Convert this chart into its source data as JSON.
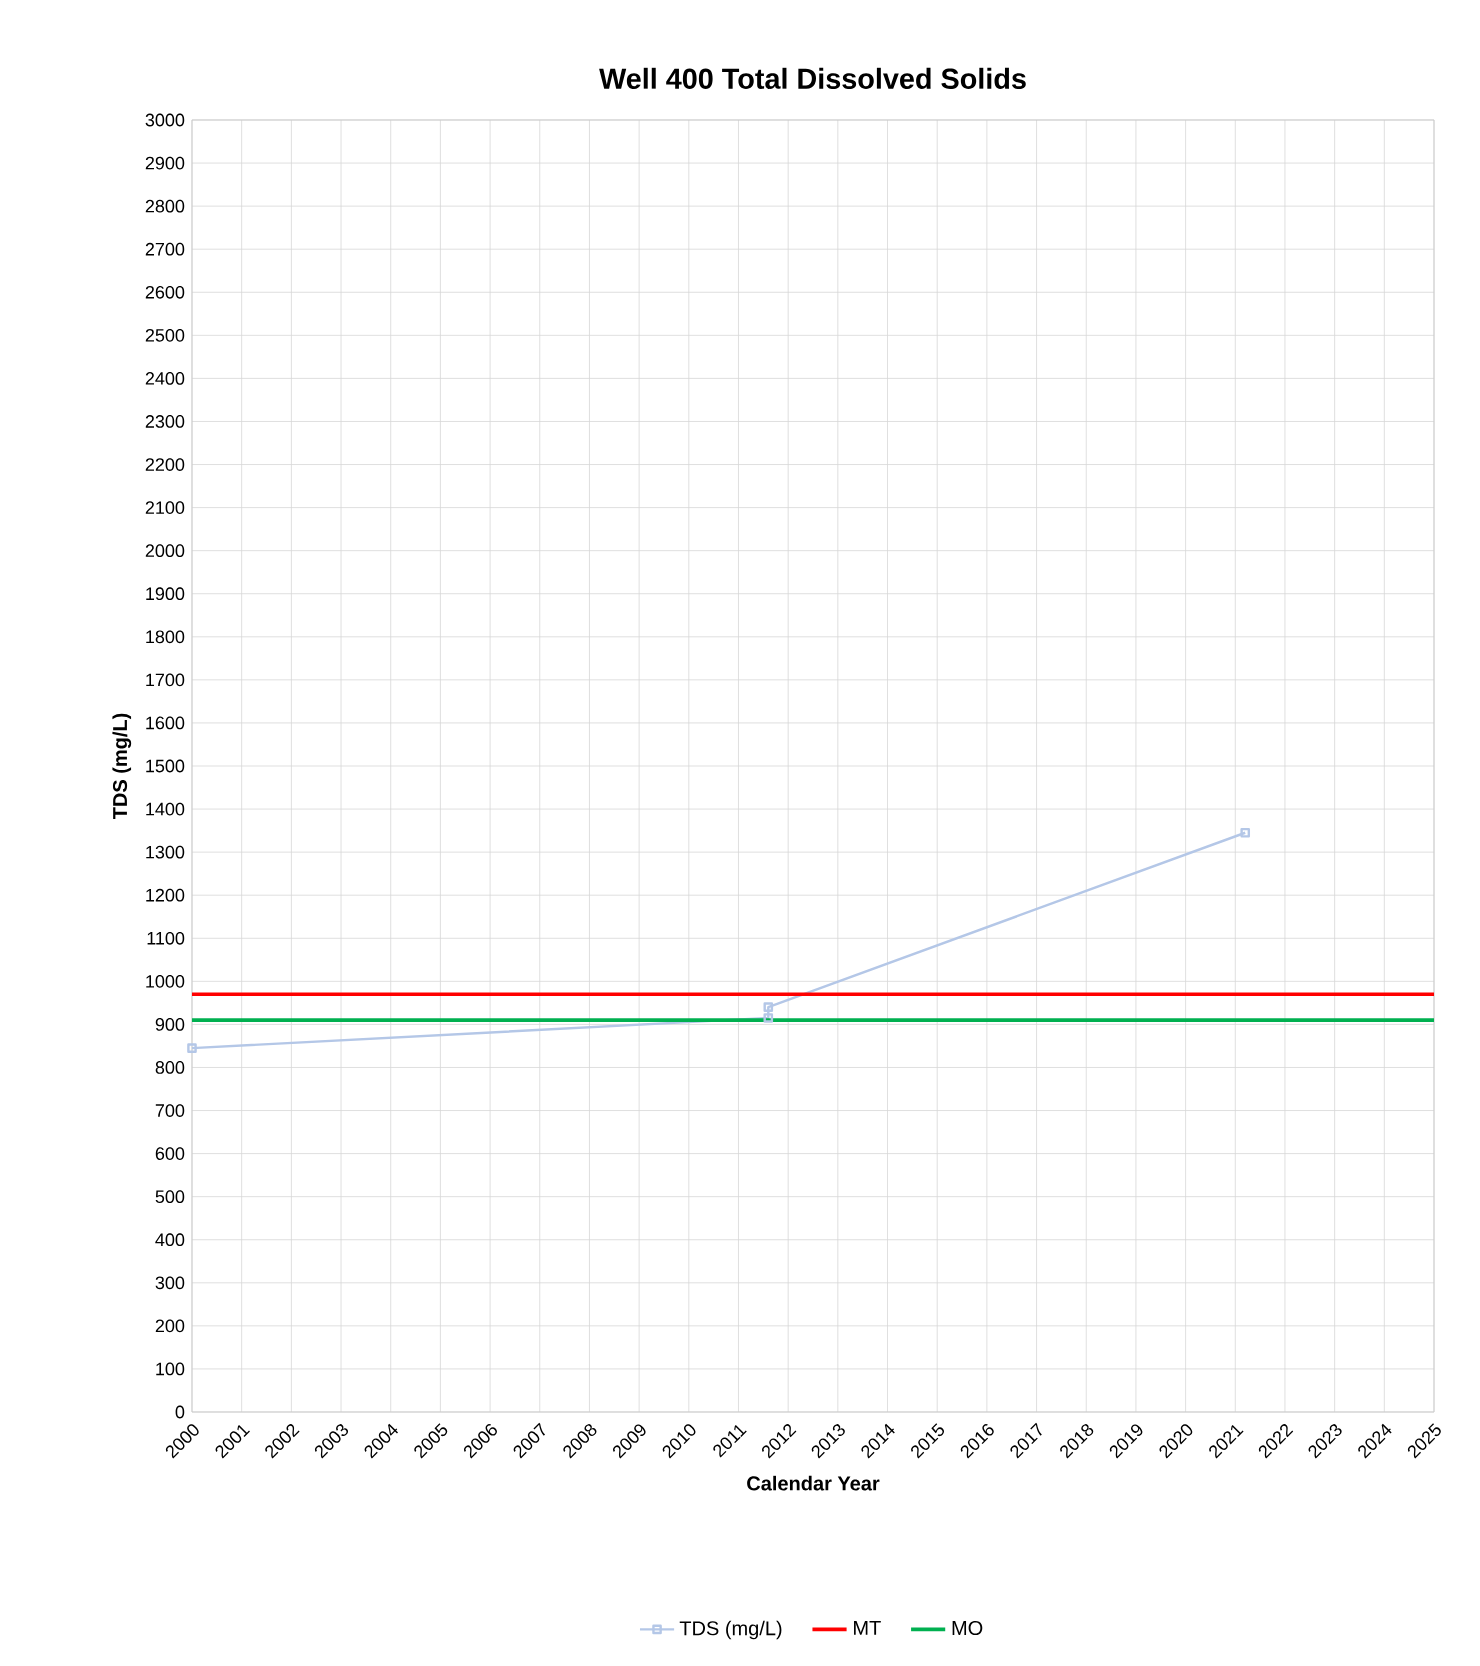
{
  "chart_data": {
    "type": "line",
    "title": "Well 400 Total Dissolved Solids",
    "xlabel": "Calendar Year",
    "ylabel": "TDS (mg/L)",
    "series": [
      {
        "name": "TDS (mg/L)",
        "color": "#b4c7e7",
        "x": [
          2000,
          2011.6,
          2011.6,
          2021.2
        ],
        "values": [
          845,
          915,
          940,
          1345
        ]
      }
    ],
    "ref_lines": [
      {
        "axis": "y",
        "value": 970,
        "label": "MT",
        "color": "#ff0000"
      },
      {
        "axis": "y",
        "value": 910,
        "label": "MO",
        "color": "#00b050"
      }
    ],
    "xlim": [
      2000,
      2025
    ],
    "xticks": [
      2000,
      2001,
      2002,
      2003,
      2004,
      2005,
      2006,
      2007,
      2008,
      2009,
      2010,
      2011,
      2012,
      2013,
      2014,
      2015,
      2016,
      2017,
      2018,
      2019,
      2020,
      2021,
      2022,
      2023,
      2024,
      2025
    ],
    "ylim": [
      0,
      3000
    ],
    "yticks": [
      0,
      100,
      200,
      300,
      400,
      500,
      600,
      700,
      800,
      900,
      1000,
      1100,
      1200,
      1300,
      1400,
      1500,
      1600,
      1700,
      1800,
      1900,
      2000,
      2100,
      2200,
      2300,
      2400,
      2500,
      2600,
      2700,
      2800,
      2900,
      3000
    ],
    "grid": true,
    "legend": "bottom",
    "marker": "square",
    "line_style": "solid"
  }
}
